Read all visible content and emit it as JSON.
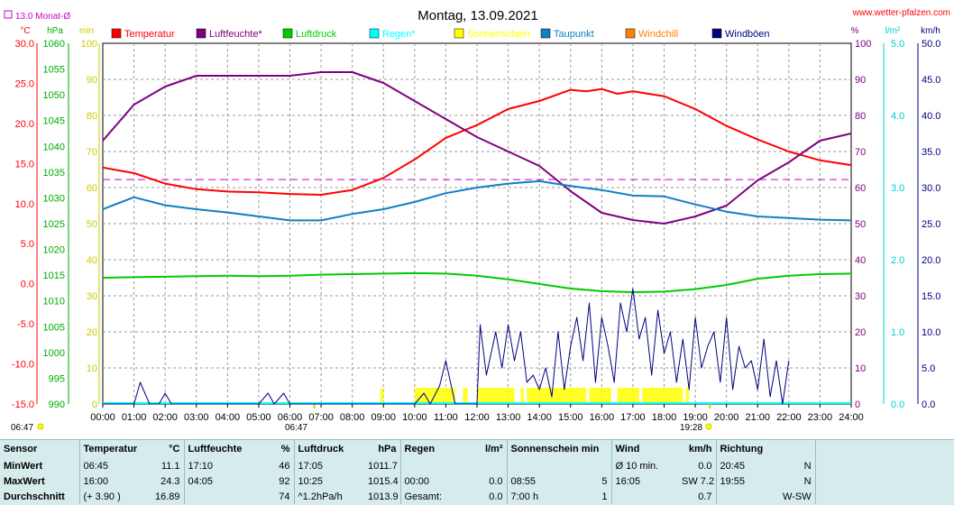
{
  "header": {
    "title": "Montag, 13.09.2021",
    "site": "www.wetter-pfalzen.com",
    "monthly_avg": "13.0 Monat-Ø",
    "sunrise": "06:47",
    "sunset": "19:28"
  },
  "units": {
    "c": "°C",
    "hpa": "hPa",
    "min": "min",
    "pct": "%",
    "lm2": "l/m²",
    "kmh": "km/h"
  },
  "legend": [
    {
      "label": "Temperatur",
      "color": "#ff0000"
    },
    {
      "label": "Luftfeuchte*",
      "color": "#800080"
    },
    {
      "label": "Luftdruck",
      "color": "#00cc00"
    },
    {
      "label": "Regen*",
      "color": "#00ffff"
    },
    {
      "label": "Sonnenschein",
      "color": "#ffff00"
    },
    {
      "label": "Taupunkt",
      "color": "#1080c0"
    },
    {
      "label": "Windchill",
      "color": "#ff8000"
    },
    {
      "label": "Windböen",
      "color": "#000080"
    }
  ],
  "chart_data": {
    "type": "line",
    "title": "Montag, 13.09.2021",
    "x_ticks": [
      "00:00",
      "01:00",
      "02:00",
      "03:00",
      "04:00",
      "05:00",
      "06:00",
      "07:00",
      "08:00",
      "09:00",
      "10:00",
      "11:00",
      "12:00",
      "13:00",
      "14:00",
      "15:00",
      "16:00",
      "17:00",
      "18:00",
      "19:00",
      "20:00",
      "21:00",
      "22:00",
      "23:00",
      "24:00"
    ],
    "axes": {
      "temp": {
        "label": "°C",
        "range": [
          -15,
          30
        ],
        "ticks": [
          "30.0",
          "25.0",
          "20.0",
          "15.0",
          "10.0",
          "5.0",
          "0.0",
          "-5.0",
          "-10.0",
          "-15.0"
        ],
        "color": "#ff0000"
      },
      "pressure": {
        "label": "hPa",
        "range": [
          990,
          1060
        ],
        "ticks": [
          "1060",
          "1055",
          "1050",
          "1045",
          "1040",
          "1035",
          "1030",
          "1025",
          "1020",
          "1015",
          "1010",
          "1005",
          "1000",
          "995",
          "990"
        ],
        "color": "#00aa00"
      },
      "sun_min": {
        "label": "min",
        "range": [
          0,
          100
        ],
        "ticks": [
          "100",
          "90",
          "80",
          "70",
          "60",
          "50",
          "40",
          "30",
          "20",
          "10",
          "0"
        ],
        "color": "#cccc00"
      },
      "humidity": {
        "label": "%",
        "range": [
          0,
          100
        ],
        "ticks": [
          "100",
          "90",
          "80",
          "70",
          "60",
          "50",
          "40",
          "30",
          "20",
          "10",
          "0"
        ],
        "color": "#800080"
      },
      "rain": {
        "label": "l/m²",
        "range": [
          0,
          5
        ],
        "ticks": [
          "5.0",
          "4.0",
          "3.0",
          "2.0",
          "1.0",
          "0.0"
        ],
        "color": "#00cccc"
      },
      "wind": {
        "label": "km/h",
        "range": [
          0,
          50
        ],
        "ticks": [
          "50.0",
          "45.0",
          "40.0",
          "35.0",
          "30.0",
          "25.0",
          "20.0",
          "15.0",
          "10.0",
          "5.0",
          "0.0"
        ],
        "color": "#000080"
      }
    },
    "reference_line": {
      "name": "13.0 Monat-Ø",
      "value": 13.0,
      "axis": "temp",
      "color": "#cc00cc"
    },
    "series": [
      {
        "name": "Temperatur",
        "axis": "temp",
        "color": "#ff0000",
        "x": [
          0,
          1,
          2,
          3,
          4,
          5,
          6,
          7,
          8,
          9,
          10,
          11,
          12,
          13,
          14,
          15,
          15.5,
          16,
          16.5,
          17,
          18,
          19,
          20,
          21,
          22,
          23,
          24
        ],
        "y": [
          14.5,
          13.8,
          12.5,
          11.8,
          11.5,
          11.4,
          11.2,
          11.1,
          11.7,
          13.2,
          15.5,
          18.2,
          19.8,
          21.8,
          22.8,
          24.2,
          24.0,
          24.3,
          23.7,
          24.0,
          23.4,
          21.8,
          19.7,
          18.0,
          16.5,
          15.4,
          14.8
        ]
      },
      {
        "name": "Luftfeuchte*",
        "axis": "humidity",
        "color": "#800080",
        "x": [
          0,
          1,
          2,
          3,
          4,
          5,
          6,
          7,
          8,
          9,
          10,
          11,
          12,
          13,
          14,
          15,
          16,
          17,
          18,
          19,
          20,
          21,
          22,
          23,
          24
        ],
        "y": [
          73,
          83,
          88,
          91,
          91,
          91,
          91,
          92,
          92,
          89,
          84,
          79,
          74,
          70,
          66,
          59,
          53,
          51,
          50,
          52,
          55,
          62,
          67,
          73,
          75
        ]
      },
      {
        "name": "Luftdruck",
        "axis": "pressure",
        "color": "#00cc00",
        "x": [
          0,
          1,
          2,
          3,
          4,
          5,
          6,
          7,
          8,
          9,
          10,
          11,
          12,
          13,
          14,
          15,
          16,
          17,
          18,
          19,
          20,
          21,
          22,
          23,
          24
        ],
        "y": [
          1014.5,
          1014.6,
          1014.7,
          1014.8,
          1014.9,
          1014.8,
          1014.9,
          1015.1,
          1015.2,
          1015.3,
          1015.4,
          1015.3,
          1014.9,
          1014.2,
          1013.3,
          1012.4,
          1011.9,
          1011.7,
          1011.8,
          1012.3,
          1013.1,
          1014.3,
          1014.9,
          1015.2,
          1015.3
        ]
      },
      {
        "name": "Taupunkt",
        "axis": "temp",
        "color": "#1080c0",
        "x": [
          0,
          1,
          2,
          3,
          4,
          5,
          6,
          7,
          8,
          9,
          10,
          11,
          12,
          13,
          14,
          15,
          16,
          17,
          18,
          19,
          20,
          21,
          22,
          23,
          24
        ],
        "y": [
          9.3,
          10.8,
          9.8,
          9.3,
          8.9,
          8.4,
          7.9,
          7.9,
          8.7,
          9.3,
          10.2,
          11.3,
          12.0,
          12.5,
          12.8,
          12.2,
          11.7,
          11.0,
          10.9,
          9.9,
          9.0,
          8.4,
          8.2,
          8.0,
          7.9
        ]
      },
      {
        "name": "Windböen",
        "axis": "wind",
        "color": "#000080",
        "x": [
          0,
          1,
          1.2,
          1.5,
          1.8,
          2,
          2.2,
          3,
          4,
          5,
          5.3,
          5.5,
          5.8,
          6,
          7,
          8,
          9,
          10,
          10.3,
          10.5,
          10.8,
          11,
          11.3,
          11.6,
          12,
          12.1,
          12.3,
          12.6,
          12.8,
          13,
          13.2,
          13.4,
          13.6,
          13.8,
          14,
          14.2,
          14.4,
          14.6,
          14.8,
          15,
          15.2,
          15.4,
          15.6,
          15.8,
          16,
          16.2,
          16.4,
          16.6,
          16.8,
          17,
          17.2,
          17.4,
          17.6,
          17.8,
          18,
          18.2,
          18.4,
          18.6,
          18.8,
          19,
          19.2,
          19.4,
          19.6,
          19.8,
          20,
          20.2,
          20.4,
          20.6,
          20.8,
          21,
          21.2,
          21.4,
          21.6,
          21.8,
          22
        ],
        "y": [
          0,
          0,
          3,
          0,
          0,
          1.5,
          0,
          0,
          0,
          0,
          1.5,
          0,
          1.5,
          0,
          0,
          0,
          0,
          0,
          1.5,
          0,
          2.5,
          6,
          0,
          0,
          0,
          11,
          4,
          10,
          5,
          11,
          6,
          10,
          3,
          4,
          2,
          5,
          1,
          10,
          2,
          8,
          12,
          6,
          14,
          3,
          12,
          8,
          3,
          14,
          10,
          16,
          9,
          12,
          4,
          13,
          7,
          10,
          3,
          9,
          2,
          12,
          5,
          8,
          10,
          3,
          12,
          2,
          8,
          5,
          6,
          2,
          9,
          1,
          6,
          0,
          6
        ]
      }
    ],
    "sunshine_periods": [
      [
        8.9,
        9.0
      ],
      [
        10.0,
        11.3
      ],
      [
        11.55,
        11.7
      ],
      [
        12.0,
        13.2
      ],
      [
        13.4,
        13.5
      ],
      [
        13.6,
        15.5
      ],
      [
        15.6,
        16.3
      ],
      [
        16.5,
        17.2
      ],
      [
        17.3,
        18.6
      ],
      [
        18.7,
        18.8
      ]
    ],
    "rain_total": 0.0
  },
  "summary": {
    "headers": {
      "sensor": "Sensor",
      "temp": "Temperatur",
      "temp_unit": "°C",
      "hum": "Luftfeuchte",
      "hum_unit": "%",
      "press": "Luftdruck",
      "press_unit": "hPa",
      "rain": "Regen",
      "rain_unit": "l/m²",
      "sun": "Sonnenschein min",
      "wind": "Wind",
      "wind_unit": "km/h",
      "dir": "Richtung"
    },
    "rows": [
      {
        "label": "MinWert",
        "temp_time": "06:45",
        "temp_val": "11.1",
        "hum_time": "17:10",
        "hum_val": "46",
        "press_time": "17:05",
        "press_val": "1011.7",
        "rain_time": "",
        "rain_val": "",
        "sun_time": "",
        "sun_val": "",
        "wind_time": "Ø 10 min.",
        "wind_val": "0.0",
        "dir_time": "20:45",
        "dir_val": "N"
      },
      {
        "label": "MaxWert",
        "temp_time": "16:00",
        "temp_val": "24.3",
        "hum_time": "04:05",
        "hum_val": "92",
        "press_time": "10:25",
        "press_val": "1015.4",
        "rain_time": "00:00",
        "rain_val": "0.0",
        "sun_time": "08:55",
        "sun_val": "5",
        "wind_time": "16:05",
        "wind_val": "SW 7.2",
        "dir_time": "19:55",
        "dir_val": "N"
      },
      {
        "label": "Durchschnitt",
        "temp_time": "(+ 3.90 )",
        "temp_val": "16.89",
        "hum_time": "",
        "hum_val": "74",
        "press_time": "^1.2hPa/h",
        "press_val": "1013.9",
        "rain_time": "Gesamt:",
        "rain_val": "0.0",
        "sun_time": "7:00 h",
        "sun_val": "1",
        "wind_time": "",
        "wind_val": "0.7",
        "dir_time": "",
        "dir_val": "W-SW"
      }
    ]
  }
}
